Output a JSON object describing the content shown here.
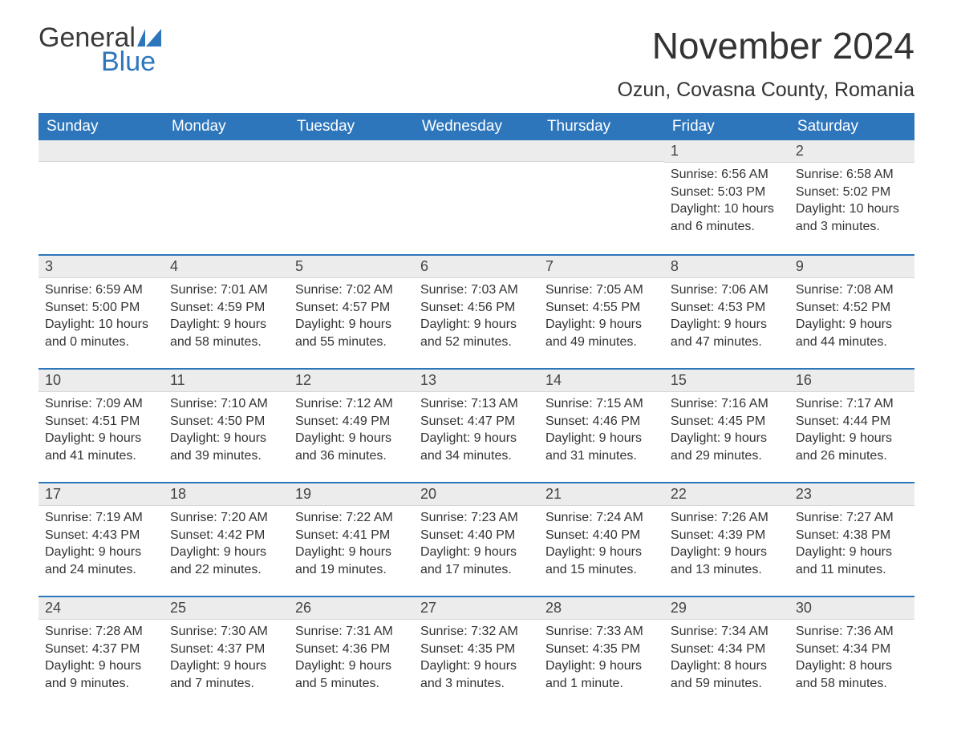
{
  "brand": {
    "logo_word1": "General",
    "logo_word2": "Blue",
    "logo_text_color": "#3a3a3a",
    "logo_accent_color": "#2d76bb"
  },
  "header": {
    "month_title": "November 2024",
    "location": "Ozun, Covasna County, Romania"
  },
  "style": {
    "header_bg": "#2d76bb",
    "header_text": "#ffffff",
    "daybar_bg": "#ececec",
    "daybar_border_top": "#2d76bb",
    "body_text_color": "#333333",
    "font_family": "Arial",
    "title_fontsize_pt": 34,
    "location_fontsize_pt": 19,
    "dayheader_fontsize_pt": 14,
    "body_fontsize_pt": 12,
    "page_bg": "#ffffff"
  },
  "day_headers": [
    "Sunday",
    "Monday",
    "Tuesday",
    "Wednesday",
    "Thursday",
    "Friday",
    "Saturday"
  ],
  "labels": {
    "sunrise": "Sunrise: ",
    "sunset": "Sunset: ",
    "daylight": "Daylight: "
  },
  "weeks": [
    [
      null,
      null,
      null,
      null,
      null,
      {
        "n": "1",
        "sr": "6:56 AM",
        "ss": "5:03 PM",
        "dl": "10 hours and 6 minutes."
      },
      {
        "n": "2",
        "sr": "6:58 AM",
        "ss": "5:02 PM",
        "dl": "10 hours and 3 minutes."
      }
    ],
    [
      {
        "n": "3",
        "sr": "6:59 AM",
        "ss": "5:00 PM",
        "dl": "10 hours and 0 minutes."
      },
      {
        "n": "4",
        "sr": "7:01 AM",
        "ss": "4:59 PM",
        "dl": "9 hours and 58 minutes."
      },
      {
        "n": "5",
        "sr": "7:02 AM",
        "ss": "4:57 PM",
        "dl": "9 hours and 55 minutes."
      },
      {
        "n": "6",
        "sr": "7:03 AM",
        "ss": "4:56 PM",
        "dl": "9 hours and 52 minutes."
      },
      {
        "n": "7",
        "sr": "7:05 AM",
        "ss": "4:55 PM",
        "dl": "9 hours and 49 minutes."
      },
      {
        "n": "8",
        "sr": "7:06 AM",
        "ss": "4:53 PM",
        "dl": "9 hours and 47 minutes."
      },
      {
        "n": "9",
        "sr": "7:08 AM",
        "ss": "4:52 PM",
        "dl": "9 hours and 44 minutes."
      }
    ],
    [
      {
        "n": "10",
        "sr": "7:09 AM",
        "ss": "4:51 PM",
        "dl": "9 hours and 41 minutes."
      },
      {
        "n": "11",
        "sr": "7:10 AM",
        "ss": "4:50 PM",
        "dl": "9 hours and 39 minutes."
      },
      {
        "n": "12",
        "sr": "7:12 AM",
        "ss": "4:49 PM",
        "dl": "9 hours and 36 minutes."
      },
      {
        "n": "13",
        "sr": "7:13 AM",
        "ss": "4:47 PM",
        "dl": "9 hours and 34 minutes."
      },
      {
        "n": "14",
        "sr": "7:15 AM",
        "ss": "4:46 PM",
        "dl": "9 hours and 31 minutes."
      },
      {
        "n": "15",
        "sr": "7:16 AM",
        "ss": "4:45 PM",
        "dl": "9 hours and 29 minutes."
      },
      {
        "n": "16",
        "sr": "7:17 AM",
        "ss": "4:44 PM",
        "dl": "9 hours and 26 minutes."
      }
    ],
    [
      {
        "n": "17",
        "sr": "7:19 AM",
        "ss": "4:43 PM",
        "dl": "9 hours and 24 minutes."
      },
      {
        "n": "18",
        "sr": "7:20 AM",
        "ss": "4:42 PM",
        "dl": "9 hours and 22 minutes."
      },
      {
        "n": "19",
        "sr": "7:22 AM",
        "ss": "4:41 PM",
        "dl": "9 hours and 19 minutes."
      },
      {
        "n": "20",
        "sr": "7:23 AM",
        "ss": "4:40 PM",
        "dl": "9 hours and 17 minutes."
      },
      {
        "n": "21",
        "sr": "7:24 AM",
        "ss": "4:40 PM",
        "dl": "9 hours and 15 minutes."
      },
      {
        "n": "22",
        "sr": "7:26 AM",
        "ss": "4:39 PM",
        "dl": "9 hours and 13 minutes."
      },
      {
        "n": "23",
        "sr": "7:27 AM",
        "ss": "4:38 PM",
        "dl": "9 hours and 11 minutes."
      }
    ],
    [
      {
        "n": "24",
        "sr": "7:28 AM",
        "ss": "4:37 PM",
        "dl": "9 hours and 9 minutes."
      },
      {
        "n": "25",
        "sr": "7:30 AM",
        "ss": "4:37 PM",
        "dl": "9 hours and 7 minutes."
      },
      {
        "n": "26",
        "sr": "7:31 AM",
        "ss": "4:36 PM",
        "dl": "9 hours and 5 minutes."
      },
      {
        "n": "27",
        "sr": "7:32 AM",
        "ss": "4:35 PM",
        "dl": "9 hours and 3 minutes."
      },
      {
        "n": "28",
        "sr": "7:33 AM",
        "ss": "4:35 PM",
        "dl": "9 hours and 1 minute."
      },
      {
        "n": "29",
        "sr": "7:34 AM",
        "ss": "4:34 PM",
        "dl": "8 hours and 59 minutes."
      },
      {
        "n": "30",
        "sr": "7:36 AM",
        "ss": "4:34 PM",
        "dl": "8 hours and 58 minutes."
      }
    ]
  ]
}
